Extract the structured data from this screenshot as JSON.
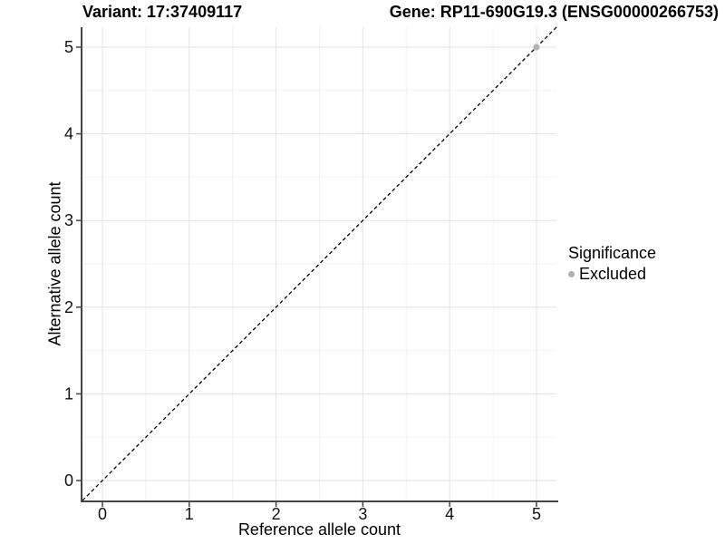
{
  "chart_data": {
    "type": "scatter",
    "title_left": "Variant: 17:37409117",
    "title_right": "Gene: RP11-690G19.3 (ENSG00000266753)",
    "xlabel": "Reference allele count",
    "ylabel": "Alternative allele count",
    "xlim": [
      -0.23,
      5.23
    ],
    "ylim": [
      -0.23,
      5.23
    ],
    "x_ticks": [
      0,
      1,
      2,
      3,
      4,
      5
    ],
    "y_ticks": [
      0,
      1,
      2,
      3,
      4,
      5
    ],
    "minor_grid_step": 0.5,
    "grid": "on",
    "reference_line": {
      "type": "identity y=x",
      "style": "dashed",
      "color": "#000000"
    },
    "series": [
      {
        "name": "Excluded",
        "color": "#b1b1b1",
        "points": [
          {
            "x": 5,
            "y": 5
          }
        ]
      }
    ],
    "legend": {
      "title": "Significance",
      "position": "right",
      "entries": [
        {
          "label": "Excluded",
          "color": "#b1b1b1"
        }
      ]
    }
  },
  "colors": {
    "background": "#ffffff",
    "axis_line": "#464646",
    "tick_mark": "#464646",
    "grid_major": "#e3e3e3",
    "grid_minor": "#f2f2f2",
    "tick_label": "#111111"
  }
}
